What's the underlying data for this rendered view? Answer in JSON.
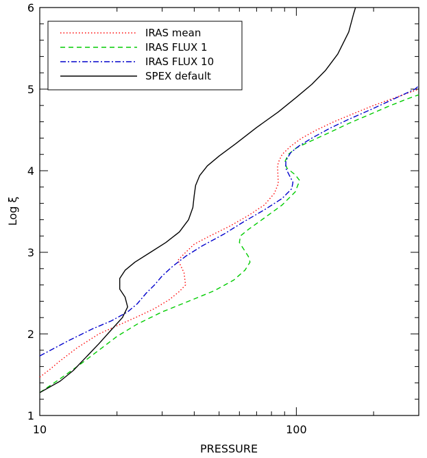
{
  "chart_data": {
    "type": "line",
    "xlabel": "PRESSURE",
    "ylabel": "Log ξ",
    "xscale": "log",
    "xlim": [
      10,
      300
    ],
    "ylim": [
      1,
      6
    ],
    "x_tick_labels": [
      "10",
      "100"
    ],
    "y_tick_labels": [
      "1",
      "2",
      "3",
      "4",
      "5",
      "6"
    ],
    "grid": false,
    "legend_position": "top-left",
    "series": [
      {
        "name": "IRAS mean",
        "color": "#ff0000",
        "style": "dotted",
        "points": [
          [
            10,
            1.47
          ],
          [
            11,
            1.57
          ],
          [
            12,
            1.67
          ],
          [
            14,
            1.83
          ],
          [
            17,
            2.0
          ],
          [
            20,
            2.1
          ],
          [
            24,
            2.21
          ],
          [
            28,
            2.31
          ],
          [
            32,
            2.42
          ],
          [
            35,
            2.52
          ],
          [
            37,
            2.6
          ],
          [
            36.5,
            2.75
          ],
          [
            35,
            2.87
          ],
          [
            34.5,
            2.9
          ],
          [
            36.5,
            2.98
          ],
          [
            40,
            3.1
          ],
          [
            46,
            3.2
          ],
          [
            55,
            3.32
          ],
          [
            65,
            3.45
          ],
          [
            75,
            3.58
          ],
          [
            82,
            3.72
          ],
          [
            85,
            3.84
          ],
          [
            84.5,
            4.05
          ],
          [
            85,
            4.1
          ],
          [
            88,
            4.2
          ],
          [
            95,
            4.3
          ],
          [
            105,
            4.4
          ],
          [
            120,
            4.5
          ],
          [
            140,
            4.6
          ],
          [
            170,
            4.71
          ],
          [
            200,
            4.8
          ],
          [
            250,
            4.91
          ],
          [
            300,
            5.0
          ]
        ]
      },
      {
        "name": "IRAS FLUX 1",
        "color": "#00cc00",
        "style": "dashed",
        "points": [
          [
            10,
            1.28
          ],
          [
            12,
            1.45
          ],
          [
            14,
            1.6
          ],
          [
            17,
            1.8
          ],
          [
            20,
            1.97
          ],
          [
            24,
            2.12
          ],
          [
            30,
            2.27
          ],
          [
            38,
            2.4
          ],
          [
            48,
            2.53
          ],
          [
            57,
            2.66
          ],
          [
            63,
            2.78
          ],
          [
            66,
            2.88
          ],
          [
            65,
            2.95
          ],
          [
            62,
            3.05
          ],
          [
            60,
            3.12
          ],
          [
            60.5,
            3.2
          ],
          [
            65,
            3.28
          ],
          [
            75,
            3.42
          ],
          [
            88,
            3.58
          ],
          [
            99,
            3.74
          ],
          [
            103,
            3.88
          ],
          [
            99,
            3.95
          ],
          [
            92,
            4.03
          ],
          [
            90,
            4.1
          ],
          [
            93,
            4.2
          ],
          [
            100,
            4.28
          ],
          [
            115,
            4.37
          ],
          [
            135,
            4.47
          ],
          [
            160,
            4.58
          ],
          [
            190,
            4.68
          ],
          [
            225,
            4.78
          ],
          [
            270,
            4.88
          ],
          [
            300,
            4.93
          ]
        ]
      },
      {
        "name": "IRAS FLUX 10",
        "color": "#0000cc",
        "style": "dash-dot",
        "points": [
          [
            10,
            1.73
          ],
          [
            13,
            1.92
          ],
          [
            16,
            2.06
          ],
          [
            19,
            2.16
          ],
          [
            22,
            2.27
          ],
          [
            24,
            2.37
          ],
          [
            26,
            2.5
          ],
          [
            28,
            2.6
          ],
          [
            30,
            2.71
          ],
          [
            33,
            2.83
          ],
          [
            37,
            2.95
          ],
          [
            43,
            3.08
          ],
          [
            52,
            3.22
          ],
          [
            62,
            3.37
          ],
          [
            75,
            3.52
          ],
          [
            88,
            3.66
          ],
          [
            96,
            3.78
          ],
          [
            97,
            3.86
          ],
          [
            94,
            3.94
          ],
          [
            91,
            4.03
          ],
          [
            91,
            4.12
          ],
          [
            95,
            4.22
          ],
          [
            102,
            4.3
          ],
          [
            115,
            4.4
          ],
          [
            135,
            4.52
          ],
          [
            160,
            4.63
          ],
          [
            195,
            4.75
          ],
          [
            240,
            4.88
          ],
          [
            290,
            5.0
          ],
          [
            300,
            5.04
          ]
        ]
      },
      {
        "name": "SPEX default",
        "color": "#000000",
        "style": "solid",
        "points": [
          [
            10,
            1.28
          ],
          [
            12,
            1.42
          ],
          [
            13.5,
            1.55
          ],
          [
            15,
            1.7
          ],
          [
            17,
            1.88
          ],
          [
            19,
            2.05
          ],
          [
            21,
            2.2
          ],
          [
            22,
            2.33
          ],
          [
            21.5,
            2.45
          ],
          [
            20.5,
            2.55
          ],
          [
            20.5,
            2.68
          ],
          [
            21.5,
            2.78
          ],
          [
            23.5,
            2.88
          ],
          [
            27,
            3.0
          ],
          [
            31,
            3.12
          ],
          [
            35,
            3.25
          ],
          [
            38,
            3.4
          ],
          [
            39.5,
            3.55
          ],
          [
            40,
            3.7
          ],
          [
            40.5,
            3.82
          ],
          [
            42,
            3.94
          ],
          [
            45,
            4.06
          ],
          [
            50,
            4.18
          ],
          [
            58,
            4.33
          ],
          [
            70,
            4.53
          ],
          [
            85,
            4.72
          ],
          [
            100,
            4.9
          ],
          [
            115,
            5.06
          ],
          [
            130,
            5.23
          ],
          [
            145,
            5.43
          ],
          [
            160,
            5.7
          ],
          [
            167,
            5.92
          ],
          [
            170,
            6.0
          ]
        ]
      }
    ]
  }
}
